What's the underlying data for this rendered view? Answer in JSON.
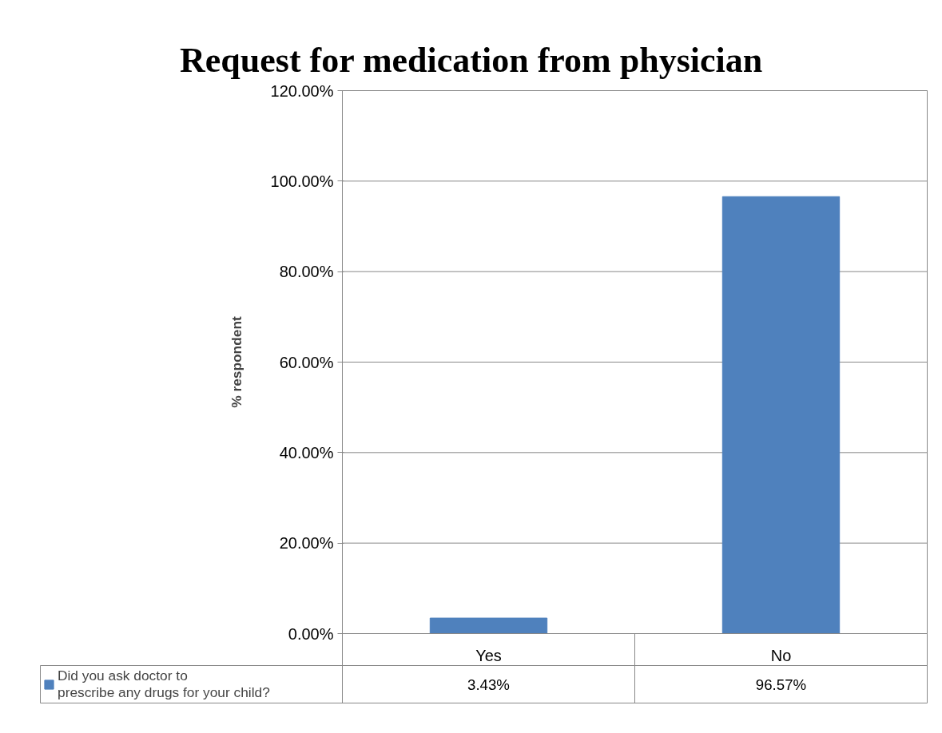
{
  "chart_data": {
    "type": "bar",
    "title": "Request for medication from physician",
    "ylabel": "% respondent",
    "categories": [
      "Yes",
      "No"
    ],
    "series": [
      {
        "name": "Did you ask doctor to prescribe any drugs for your child?",
        "color": "#4f81bd",
        "values": [
          3.43,
          96.57
        ],
        "value_labels": [
          "3.43%",
          "96.57%"
        ]
      }
    ],
    "ylim": [
      0,
      120
    ],
    "yticks": [
      {
        "value": 0,
        "label": "0.00%"
      },
      {
        "value": 20,
        "label": "20.00%"
      },
      {
        "value": 40,
        "label": "40.00%"
      },
      {
        "value": 60,
        "label": "60.00%"
      },
      {
        "value": 80,
        "label": "80.00%"
      },
      {
        "value": 100,
        "label": "100.00%"
      },
      {
        "value": 120,
        "label": "120.00%"
      }
    ],
    "grid": "y",
    "legend": "bottom"
  }
}
